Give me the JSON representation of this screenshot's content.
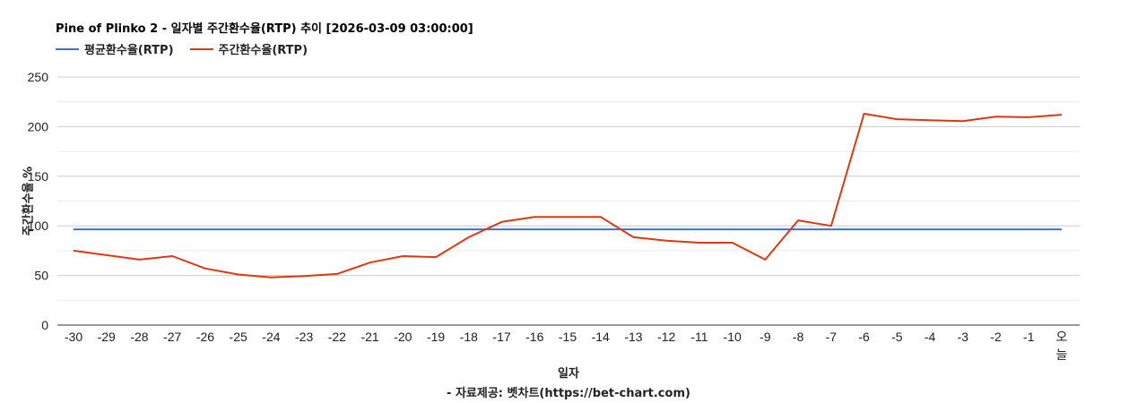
{
  "title": "Pine of Plinko 2 - 일자별 주간환수율(RTP) 추이 [2026-03-09 03:00:00]",
  "legend": [
    {
      "label": "평균환수율(RTP)",
      "color": "#3c6fd6"
    },
    {
      "label": "주간환수율(RTP)",
      "color": "#dc3912"
    }
  ],
  "axes": {
    "ylabel": "주간환수율 %",
    "xlabel": "일자",
    "credit": "- 자료제공: 벳차트(https://bet-chart.com)"
  },
  "chart_data": {
    "type": "line",
    "title": "Pine of Plinko 2 - 일자별 주간환수율(RTP) 추이 [2026-03-09 03:00:00]",
    "xlabel": "일자",
    "ylabel": "주간환수율 %",
    "ylim": [
      0,
      250
    ],
    "yticks": [
      0,
      50,
      100,
      150,
      200,
      250
    ],
    "grid": true,
    "legend_position": "top",
    "categories": [
      "-30",
      "-29",
      "-28",
      "-27",
      "-26",
      "-25",
      "-24",
      "-23",
      "-22",
      "-21",
      "-20",
      "-19",
      "-18",
      "-17",
      "-16",
      "-15",
      "-14",
      "-13",
      "-12",
      "-11",
      "-10",
      "-9",
      "-8",
      "-7",
      "-6",
      "-5",
      "-4",
      "-3",
      "-2",
      "-1",
      "오늘"
    ],
    "series": [
      {
        "name": "평균환수율(RTP)",
        "color": "#3c6fd6",
        "values": [
          96.5,
          96.5,
          96.5,
          96.5,
          96.5,
          96.5,
          96.5,
          96.5,
          96.5,
          96.5,
          96.5,
          96.5,
          96.5,
          96.5,
          96.5,
          96.5,
          96.5,
          96.5,
          96.5,
          96.5,
          96.5,
          96.5,
          96.5,
          96.5,
          96.5,
          96.5,
          96.5,
          96.5,
          96.5,
          96.5,
          96.5
        ]
      },
      {
        "name": "주간환수율(RTP)",
        "color": "#dc3912",
        "values": [
          75,
          70.5,
          66,
          69.5,
          57,
          51,
          48,
          49.5,
          51.5,
          63,
          69.5,
          68.5,
          88.5,
          104,
          109,
          109,
          109,
          88.5,
          85,
          83,
          83,
          66,
          105.5,
          100,
          213,
          207.5,
          206.5,
          205.5,
          210,
          209.5,
          212
        ]
      }
    ]
  }
}
